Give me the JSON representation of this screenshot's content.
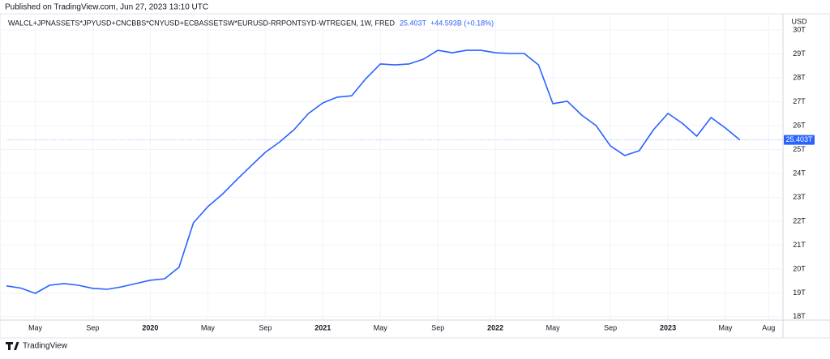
{
  "published": "Published on TradingView.com, Jun 27, 2023 13:10 UTC",
  "footer": "TradingView",
  "chart_data": {
    "type": "line",
    "currency": "USD",
    "change": "+44.593B (+0.18%)",
    "last_value": {
      "value": 25.403,
      "label": "25.403T"
    },
    "x": [
      "2019-03",
      "2019-04",
      "2019-05",
      "2019-06",
      "2019-07",
      "2019-08",
      "2019-09",
      "2019-10",
      "2019-11",
      "2019-12",
      "2020-01",
      "2020-02",
      "2020-03",
      "2020-04",
      "2020-05",
      "2020-06",
      "2020-07",
      "2020-08",
      "2020-09",
      "2020-10",
      "2020-11",
      "2020-12",
      "2021-01",
      "2021-02",
      "2021-03",
      "2021-04",
      "2021-05",
      "2021-06",
      "2021-07",
      "2021-08",
      "2021-09",
      "2021-10",
      "2021-11",
      "2021-12",
      "2022-01",
      "2022-02",
      "2022-03",
      "2022-04",
      "2022-05",
      "2022-06",
      "2022-07",
      "2022-08",
      "2022-09",
      "2022-10",
      "2022-11",
      "2022-12",
      "2023-01",
      "2023-02",
      "2023-03",
      "2023-04",
      "2023-05",
      "2023-06"
    ],
    "series": [
      {
        "name": "WALCL+JPNASSETS*JPYUSD+CNCBBS*CNYUSD+ECBASSETSW*EURUSD-RRPONTSYD-WTREGEN, 1W, FRED",
        "color": "#2962ff",
        "values": [
          19.29,
          19.2,
          18.98,
          19.32,
          19.39,
          19.32,
          19.19,
          19.15,
          19.25,
          19.39,
          19.53,
          19.59,
          20.07,
          21.93,
          22.61,
          23.12,
          23.73,
          24.31,
          24.88,
          25.32,
          25.83,
          26.51,
          26.95,
          27.19,
          27.25,
          27.97,
          28.58,
          28.54,
          28.58,
          28.78,
          29.15,
          29.05,
          29.15,
          29.15,
          29.05,
          29.02,
          29.02,
          28.54,
          26.92,
          27.02,
          26.44,
          26.0,
          25.15,
          24.75,
          24.95,
          25.83,
          26.51,
          26.1,
          25.56,
          26.34,
          25.9,
          25.403
        ]
      }
    ],
    "xlim": [
      "2019-03",
      "2023-09"
    ],
    "xticks": [
      {
        "value": "2019-05",
        "label": "May"
      },
      {
        "value": "2019-09",
        "label": "Sep"
      },
      {
        "value": "2020-01",
        "label": "2020"
      },
      {
        "value": "2020-05",
        "label": "May"
      },
      {
        "value": "2020-09",
        "label": "Sep"
      },
      {
        "value": "2021-01",
        "label": "2021"
      },
      {
        "value": "2021-05",
        "label": "May"
      },
      {
        "value": "2021-09",
        "label": "Sep"
      },
      {
        "value": "2022-01",
        "label": "2022"
      },
      {
        "value": "2022-05",
        "label": "May"
      },
      {
        "value": "2022-09",
        "label": "Sep"
      },
      {
        "value": "2023-01",
        "label": "2023"
      },
      {
        "value": "2023-05",
        "label": "May"
      },
      {
        "value": "2023-08",
        "label": "Aug"
      }
    ],
    "ylim": [
      17.86,
      30.24
    ],
    "yticks": [
      {
        "value": 18,
        "label": "18T"
      },
      {
        "value": 19,
        "label": "19T"
      },
      {
        "value": 20,
        "label": "20T"
      },
      {
        "value": 21,
        "label": "21T"
      },
      {
        "value": 22,
        "label": "22T"
      },
      {
        "value": 23,
        "label": "23T"
      },
      {
        "value": 24,
        "label": "24T"
      },
      {
        "value": 25,
        "label": "25T"
      },
      {
        "value": 26,
        "label": "26T"
      },
      {
        "value": 27,
        "label": "27T"
      },
      {
        "value": 28,
        "label": "28T"
      },
      {
        "value": 29,
        "label": "29T"
      },
      {
        "value": 30,
        "label": "30T"
      }
    ],
    "grid": true
  }
}
